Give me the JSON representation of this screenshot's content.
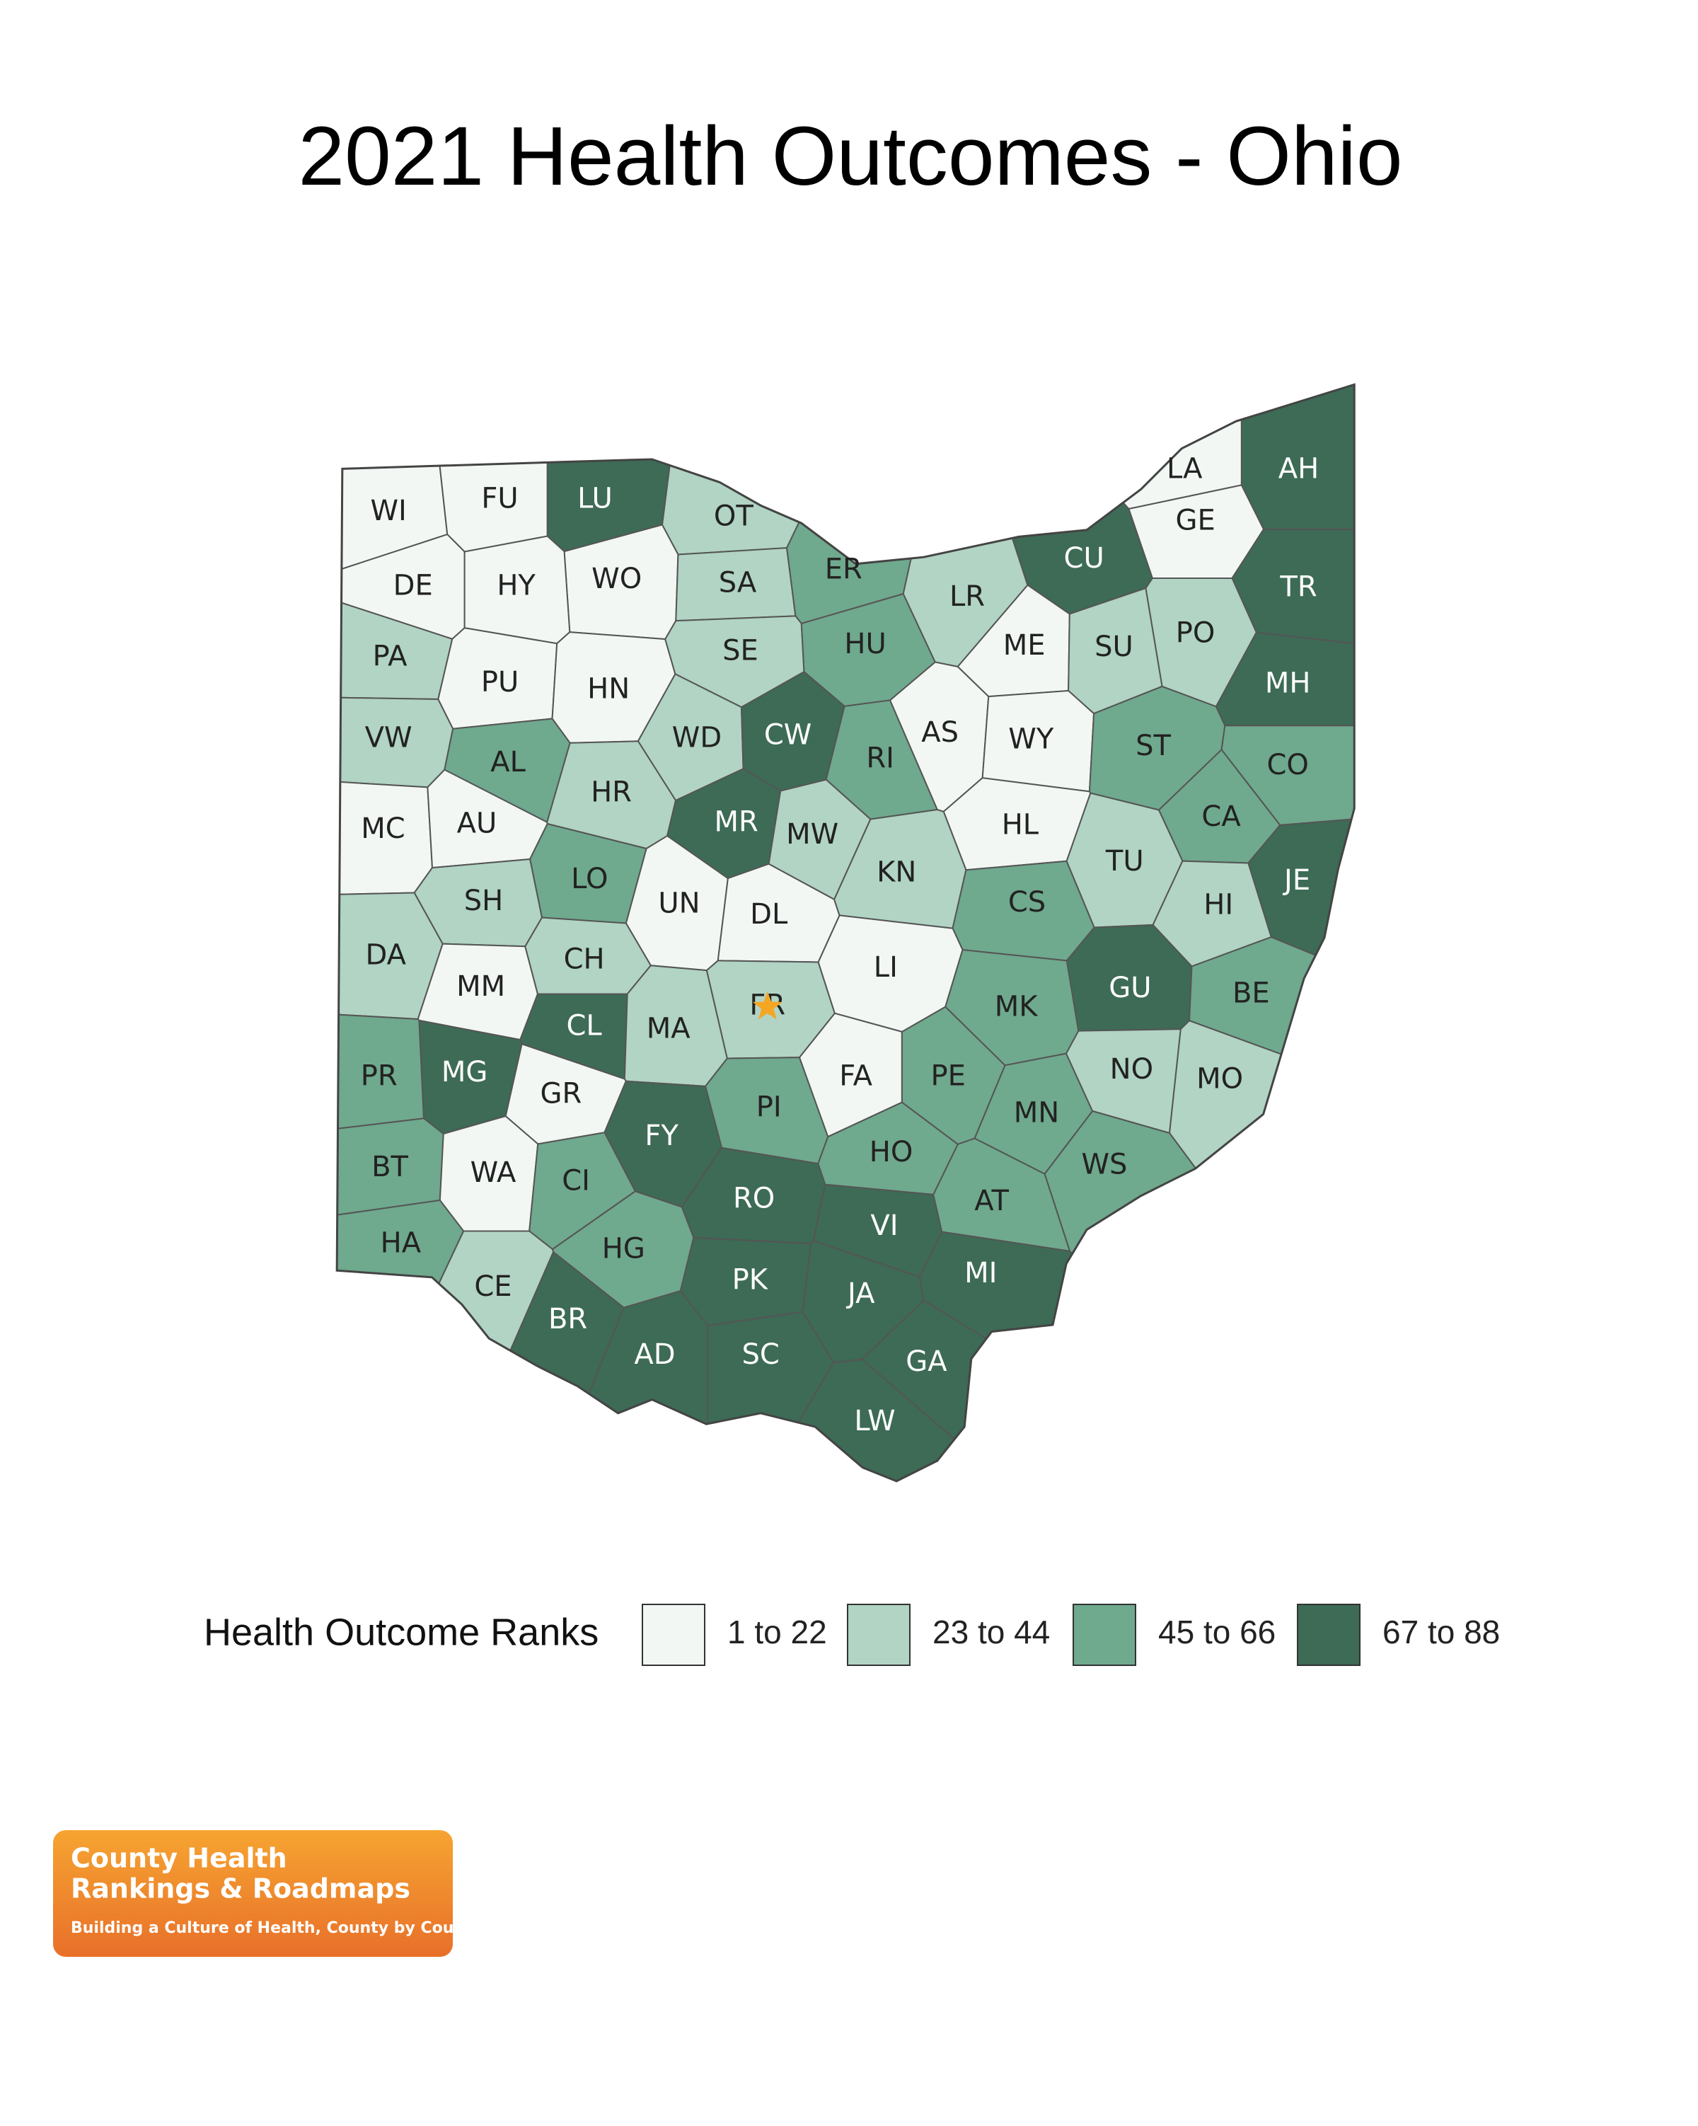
{
  "title": "2021 Health Outcomes - Ohio",
  "legend": {
    "title": "Health Outcome Ranks",
    "classes": [
      {
        "label": "1 to 22",
        "color": "#f2f7f4"
      },
      {
        "label": "23 to 44",
        "color": "#b1d4c4"
      },
      {
        "label": "45 to 66",
        "color": "#6fa98e"
      },
      {
        "label": "67 to 88",
        "color": "#3d6b56"
      }
    ]
  },
  "counties": [
    {
      "label": "WI",
      "class": 0
    },
    {
      "label": "FU",
      "class": 0
    },
    {
      "label": "LU",
      "class": 3
    },
    {
      "label": "OT",
      "class": 1
    },
    {
      "label": "WO",
      "class": 0
    },
    {
      "label": "DE",
      "class": 0
    },
    {
      "label": "HY",
      "class": 0
    },
    {
      "label": "SA",
      "class": 1
    },
    {
      "label": "ER",
      "class": 2
    },
    {
      "label": "LR",
      "class": 1
    },
    {
      "label": "CU",
      "class": 3
    },
    {
      "label": "LA",
      "class": 0
    },
    {
      "label": "GE",
      "class": 0
    },
    {
      "label": "AH",
      "class": 3
    },
    {
      "label": "TR",
      "class": 3
    },
    {
      "label": "PA",
      "class": 1
    },
    {
      "label": "PU",
      "class": 0
    },
    {
      "label": "HN",
      "class": 0
    },
    {
      "label": "SE",
      "class": 1
    },
    {
      "label": "HU",
      "class": 2
    },
    {
      "label": "ME",
      "class": 0
    },
    {
      "label": "SU",
      "class": 1
    },
    {
      "label": "PO",
      "class": 1
    },
    {
      "label": "MH",
      "class": 3
    },
    {
      "label": "VW",
      "class": 1
    },
    {
      "label": "AL",
      "class": 2
    },
    {
      "label": "WD",
      "class": 1
    },
    {
      "label": "CW",
      "class": 3
    },
    {
      "label": "RI",
      "class": 2
    },
    {
      "label": "AS",
      "class": 0
    },
    {
      "label": "WY",
      "class": 0
    },
    {
      "label": "ST",
      "class": 2
    },
    {
      "label": "CO",
      "class": 2
    },
    {
      "label": "MC",
      "class": 0
    },
    {
      "label": "AU",
      "class": 0
    },
    {
      "label": "HR",
      "class": 1
    },
    {
      "label": "MR",
      "class": 3
    },
    {
      "label": "MW",
      "class": 1
    },
    {
      "label": "HL",
      "class": 0
    },
    {
      "label": "CA",
      "class": 2
    },
    {
      "label": "LO",
      "class": 2
    },
    {
      "label": "UN",
      "class": 0
    },
    {
      "label": "DL",
      "class": 0
    },
    {
      "label": "KN",
      "class": 1
    },
    {
      "label": "CS",
      "class": 2
    },
    {
      "label": "TU",
      "class": 1
    },
    {
      "label": "JE",
      "class": 3
    },
    {
      "label": "HI",
      "class": 1
    },
    {
      "label": "SH",
      "class": 1
    },
    {
      "label": "DA",
      "class": 1
    },
    {
      "label": "MM",
      "class": 0
    },
    {
      "label": "CH",
      "class": 1
    },
    {
      "label": "CL",
      "class": 3
    },
    {
      "label": "MA",
      "class": 1
    },
    {
      "label": "FR",
      "class": 1
    },
    {
      "label": "LI",
      "class": 0
    },
    {
      "label": "MK",
      "class": 2
    },
    {
      "label": "GU",
      "class": 3
    },
    {
      "label": "BE",
      "class": 2
    },
    {
      "label": "PR",
      "class": 2
    },
    {
      "label": "MG",
      "class": 3
    },
    {
      "label": "GR",
      "class": 0
    },
    {
      "label": "FY",
      "class": 3
    },
    {
      "label": "PI",
      "class": 2
    },
    {
      "label": "FA",
      "class": 0
    },
    {
      "label": "PE",
      "class": 2
    },
    {
      "label": "MN",
      "class": 2
    },
    {
      "label": "NO",
      "class": 1
    },
    {
      "label": "MO",
      "class": 1
    },
    {
      "label": "BT",
      "class": 2
    },
    {
      "label": "WA",
      "class": 0
    },
    {
      "label": "CI",
      "class": 2
    },
    {
      "label": "HO",
      "class": 2
    },
    {
      "label": "WS",
      "class": 2
    },
    {
      "label": "RO",
      "class": 3
    },
    {
      "label": "VI",
      "class": 3
    },
    {
      "label": "AT",
      "class": 2
    },
    {
      "label": "HA",
      "class": 2
    },
    {
      "label": "HG",
      "class": 2
    },
    {
      "label": "CE",
      "class": 1
    },
    {
      "label": "PK",
      "class": 3
    },
    {
      "label": "JA",
      "class": 3
    },
    {
      "label": "MI",
      "class": 3
    },
    {
      "label": "BR",
      "class": 3
    },
    {
      "label": "AD",
      "class": 3
    },
    {
      "label": "SC",
      "class": 3
    },
    {
      "label": "GA",
      "class": 3
    },
    {
      "label": "LW",
      "class": 3
    }
  ],
  "logo": {
    "line1": "County Health",
    "line2": "Rankings & Roadmaps",
    "tagline": "Building a Culture of Health, County by County"
  }
}
